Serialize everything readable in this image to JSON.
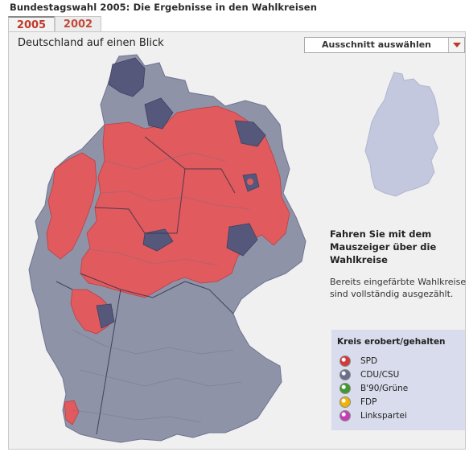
{
  "page": {
    "title": "Bundestagswahl 2005: Die Ergebnisse in den Wahlkreisen"
  },
  "tabs": [
    {
      "label": "2005",
      "active": true
    },
    {
      "label": "2002",
      "active": false
    }
  ],
  "panel": {
    "heading": "Deutschland auf einen Blick",
    "select_label": "Ausschnitt auswählen"
  },
  "info": {
    "heading": "Fahren Sie mit dem Mauszeiger über die Wahlkreise",
    "text": "Bereits eingefärbte Wahlkreise sind vollständig ausgezählt."
  },
  "legend": {
    "title": "Kreis erobert/gehalten",
    "items": [
      {
        "label": "SPD",
        "color": "#d23a3a"
      },
      {
        "label": "CDU/CSU",
        "color": "#6b6e8c"
      },
      {
        "label": "B'90/Grüne",
        "color": "#3f9a2e"
      },
      {
        "label": "FDP",
        "color": "#f0b400"
      },
      {
        "label": "Linkspartei",
        "color": "#c43fb4"
      }
    ]
  },
  "colors": {
    "spd": "#e05a5e",
    "cdu": "#8e93a8",
    "cdu_dark": "#55587a",
    "mini_map": "#c3c8de",
    "accent": "#c0392b"
  }
}
